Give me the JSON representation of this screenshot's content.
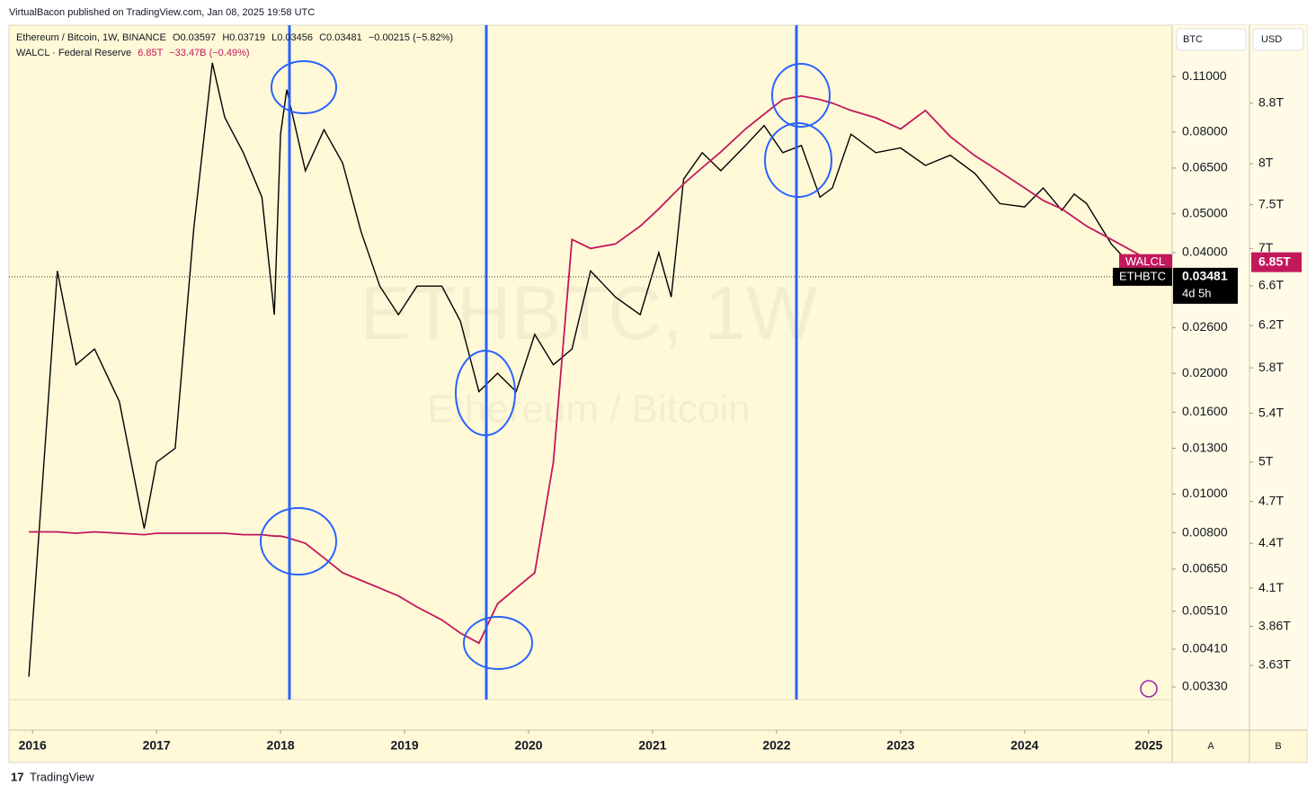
{
  "header": "VirtualBacon published on TradingView.com, Jan 08, 2025 19:58 UTC",
  "legend": {
    "symbol": "Ethereum / Bitcoin, 1W, BINANCE",
    "open": "O0.03597",
    "high": "H0.03719",
    "low": "L0.03456",
    "close": "C0.03481",
    "change": "−0.00215 (−5.82%)",
    "indicator": "WALCL · Federal Reserve",
    "indicator_value": "6.85T",
    "indicator_change": "−33.47B (−0.49%)"
  },
  "watermark": {
    "big": "ETHBTC, 1W",
    "small": "Ethereum / Bitcoin"
  },
  "axis_headers": {
    "left": "BTC",
    "right": "USD",
    "left_bottom": "A",
    "right_bottom": "B"
  },
  "badges": {
    "walcl_value": "6.85T",
    "ethbtc_value": "0.03481",
    "countdown": "4d 5h"
  },
  "footer": "TradingView",
  "chart_data": {
    "type": "line",
    "log_scale": true,
    "x": [
      2015.97,
      2016.1,
      2016.2,
      2016.35,
      2016.5,
      2016.7,
      2016.9,
      2017.0,
      2017.15,
      2017.3,
      2017.45,
      2017.55,
      2017.7,
      2017.85,
      2017.95,
      2018.0,
      2018.05,
      2018.2,
      2018.35,
      2018.5,
      2018.65,
      2018.8,
      2018.95,
      2019.1,
      2019.3,
      2019.45,
      2019.6,
      2019.75,
      2019.9,
      2020.05,
      2020.2,
      2020.35,
      2020.5,
      2020.7,
      2020.9,
      2021.05,
      2021.15,
      2021.25,
      2021.4,
      2021.55,
      2021.75,
      2021.9,
      2022.05,
      2022.2,
      2022.35,
      2022.45,
      2022.6,
      2022.8,
      2023.0,
      2023.2,
      2023.4,
      2023.6,
      2023.8,
      2024.0,
      2024.15,
      2024.3,
      2024.4,
      2024.5,
      2024.7,
      2024.9,
      2025.02
    ],
    "xlim": [
      2015.81,
      2025.19
    ],
    "xticks": [
      2016,
      2017,
      2018,
      2019,
      2020,
      2021,
      2022,
      2023,
      2024,
      2025
    ],
    "ylim": [
      0.00307,
      0.1477
    ],
    "yticks": [
      {
        "value": 0.11,
        "label": "0.11000"
      },
      {
        "value": 0.08,
        "label": "0.08000"
      },
      {
        "value": 0.065,
        "label": "0.06500"
      },
      {
        "value": 0.05,
        "label": "0.05000"
      },
      {
        "value": 0.04,
        "label": "0.04000"
      },
      {
        "value": 0.026,
        "label": "0.02600"
      },
      {
        "value": 0.02,
        "label": "0.02000"
      },
      {
        "value": 0.016,
        "label": "0.01600"
      },
      {
        "value": 0.013,
        "label": "0.01300"
      },
      {
        "value": 0.01,
        "label": "0.01000"
      },
      {
        "value": 0.008,
        "label": "0.00800"
      },
      {
        "value": 0.0065,
        "label": "0.00650"
      },
      {
        "value": 0.0051,
        "label": "0.00510"
      },
      {
        "value": 0.0041,
        "label": "0.00410"
      },
      {
        "value": 0.0033,
        "label": "0.00330"
      }
    ],
    "y2lim": [
      3.44,
      9.95
    ],
    "y2ticks": [
      {
        "value": 8.8,
        "label": "8.8T"
      },
      {
        "value": 8,
        "label": "8T"
      },
      {
        "value": 7.5,
        "label": "7.5T"
      },
      {
        "value": 7,
        "label": "7T"
      },
      {
        "value": 6.6,
        "label": "6.6T"
      },
      {
        "value": 6.2,
        "label": "6.2T"
      },
      {
        "value": 5.8,
        "label": "5.8T"
      },
      {
        "value": 5.4,
        "label": "5.4T"
      },
      {
        "value": 5,
        "label": "5T"
      },
      {
        "value": 4.7,
        "label": "4.7T"
      },
      {
        "value": 4.4,
        "label": "4.4T"
      },
      {
        "value": 4.1,
        "label": "4.1T"
      },
      {
        "value": 3.86,
        "label": "3.86T"
      },
      {
        "value": 3.63,
        "label": "3.63T"
      }
    ],
    "series": [
      {
        "name": "ETHBTC",
        "color": "#000000",
        "values": [
          0.0035,
          0.013,
          0.036,
          0.021,
          0.023,
          0.017,
          0.0082,
          0.012,
          0.013,
          0.046,
          0.119,
          0.087,
          0.071,
          0.055,
          0.028,
          0.079,
          0.102,
          0.064,
          0.081,
          0.067,
          0.045,
          0.033,
          0.028,
          0.033,
          0.033,
          0.027,
          0.018,
          0.02,
          0.018,
          0.025,
          0.021,
          0.023,
          0.036,
          0.031,
          0.028,
          0.04,
          0.031,
          0.061,
          0.071,
          0.064,
          0.074,
          0.083,
          0.071,
          0.074,
          0.055,
          0.058,
          0.079,
          0.071,
          0.073,
          0.066,
          0.07,
          0.063,
          0.053,
          0.052,
          0.058,
          0.051,
          0.056,
          0.053,
          0.042,
          0.036,
          0.03481
        ]
      },
      {
        "name": "WALCL",
        "color": "#c2185b",
        "axis": "y2",
        "values": [
          4.48,
          4.48,
          4.48,
          4.47,
          4.48,
          4.47,
          4.46,
          4.47,
          4.47,
          4.47,
          4.47,
          4.47,
          4.46,
          4.46,
          4.45,
          4.45,
          4.44,
          4.4,
          4.3,
          4.2,
          4.15,
          4.1,
          4.05,
          3.98,
          3.9,
          3.82,
          3.76,
          4.0,
          4.1,
          4.2,
          5.0,
          7.1,
          7.0,
          7.05,
          7.25,
          7.45,
          7.6,
          7.75,
          7.95,
          8.15,
          8.45,
          8.65,
          8.85,
          8.9,
          8.85,
          8.8,
          8.7,
          8.6,
          8.45,
          8.7,
          8.35,
          8.1,
          7.9,
          7.7,
          7.55,
          7.45,
          7.35,
          7.25,
          7.1,
          6.95,
          6.85
        ]
      }
    ]
  }
}
